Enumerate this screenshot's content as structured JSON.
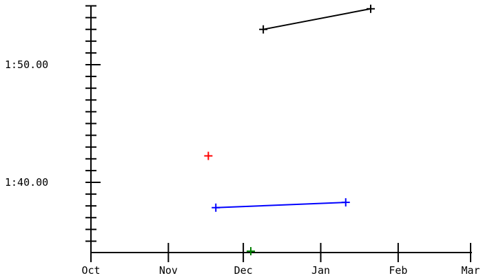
{
  "chart_data": {
    "type": "scatter",
    "title": "",
    "xlabel": "",
    "ylabel": "",
    "x_axis": {
      "kind": "date",
      "range": [
        "2011-10-01",
        "2012-03-01"
      ],
      "ticks": [
        {
          "date": "2011-10-01",
          "label": "Oct"
        },
        {
          "date": "2011-11-01",
          "label": "Nov"
        },
        {
          "date": "2011-12-01",
          "label": "Dec"
        },
        {
          "date": "2012-01-01",
          "label": "Jan"
        },
        {
          "date": "2012-02-01",
          "label": "Feb"
        },
        {
          "date": "2012-03-01",
          "label": "Mar"
        }
      ]
    },
    "y_axis": {
      "kind": "duration",
      "range": [
        "1:34.00",
        "1:56.00"
      ],
      "major_ticks": [
        "1:40.00",
        "1:50.00"
      ],
      "minor_ticks": [
        "1:35.00",
        "1:36.00",
        "1:37.00",
        "1:38.00",
        "1:39.00",
        "1:41.00",
        "1:42.00",
        "1:43.00",
        "1:44.00",
        "1:45.00",
        "1:46.00",
        "1:47.00",
        "1:48.00",
        "1:49.00",
        "1:51.00",
        "1:52.00",
        "1:53.00",
        "1:54.00",
        "1:55.00"
      ]
    },
    "grid": false,
    "series": [
      {
        "color": "#000000",
        "connected": true,
        "points": [
          {
            "x": "2011-12-09",
            "y": "1:53.00"
          },
          {
            "x": "2012-01-21",
            "y": "1:54.75"
          }
        ]
      },
      {
        "color": "#ff0000",
        "connected": false,
        "points": [
          {
            "x": "2011-11-17",
            "y": "1:42.25"
          }
        ]
      },
      {
        "color": "#0000ff",
        "connected": true,
        "points": [
          {
            "x": "2011-11-20",
            "y": "1:37.85"
          },
          {
            "x": "2012-01-11",
            "y": "1:38.30"
          }
        ]
      },
      {
        "color": "#008000",
        "connected": false,
        "points": [
          {
            "x": "2011-12-04",
            "y": "1:34.15"
          }
        ]
      }
    ]
  }
}
